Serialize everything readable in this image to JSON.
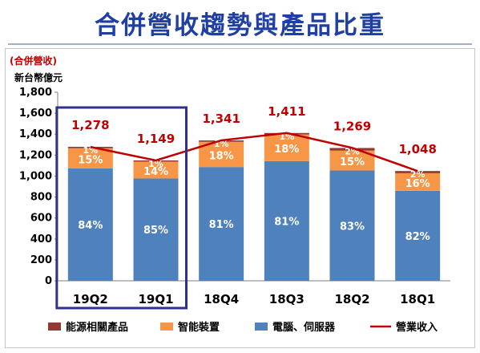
{
  "title": "合併營收趨勢與產品比重",
  "unit_label": "(合併營收)",
  "unit_sub": "新台幣億元",
  "chart_data": {
    "type": "bar",
    "stacked": true,
    "categories": [
      "19Q2",
      "19Q1",
      "18Q4",
      "18Q3",
      "18Q2",
      "18Q1"
    ],
    "ylim": [
      0,
      1800
    ],
    "yticks": [
      "0",
      "200",
      "400",
      "600",
      "800",
      "1,000",
      "1,200",
      "1,400",
      "1,600",
      "1,800"
    ],
    "ytick_values": [
      0,
      200,
      400,
      600,
      800,
      1000,
      1200,
      1400,
      1600,
      1800
    ],
    "series": [
      {
        "name": "電腦、伺服器",
        "color": "#4f81bd",
        "values": [
          1074,
          977,
          1086,
          1143,
          1053,
          859
        ],
        "labels": [
          "84%",
          "85%",
          "81%",
          "81%",
          "83%",
          "82%"
        ]
      },
      {
        "name": "智能裝置",
        "color": "#f79646",
        "values": [
          192,
          161,
          241,
          254,
          190,
          168
        ],
        "labels": [
          "15%",
          "14%",
          "18%",
          "18%",
          "15%",
          "16%"
        ]
      },
      {
        "name": "能源相關產品",
        "color": "#953735",
        "values": [
          13,
          11,
          13,
          14,
          25,
          21
        ],
        "labels": [
          "1%",
          "1%",
          "1%",
          "1%",
          "2%",
          "2%"
        ]
      }
    ],
    "line": {
      "name": "營業收入",
      "color": "#c00000",
      "values": [
        1278,
        1149,
        1341,
        1411,
        1269,
        1048
      ],
      "labels": [
        "1,278",
        "1,149",
        "1,341",
        "1,411",
        "1,269",
        "1,048"
      ]
    },
    "highlight": {
      "categories": [
        "19Q2",
        "19Q1"
      ],
      "color": "#2e3192"
    },
    "legend": [
      {
        "name": "能源相關產品",
        "kind": "swatch",
        "color": "#953735"
      },
      {
        "name": "智能裝置",
        "kind": "swatch",
        "color": "#f79646"
      },
      {
        "name": "電腦、伺服器",
        "kind": "swatch",
        "color": "#4f81bd"
      },
      {
        "name": "營業收入",
        "kind": "line",
        "color": "#c00000"
      }
    ],
    "legend_position": "bottom",
    "grid": false
  }
}
